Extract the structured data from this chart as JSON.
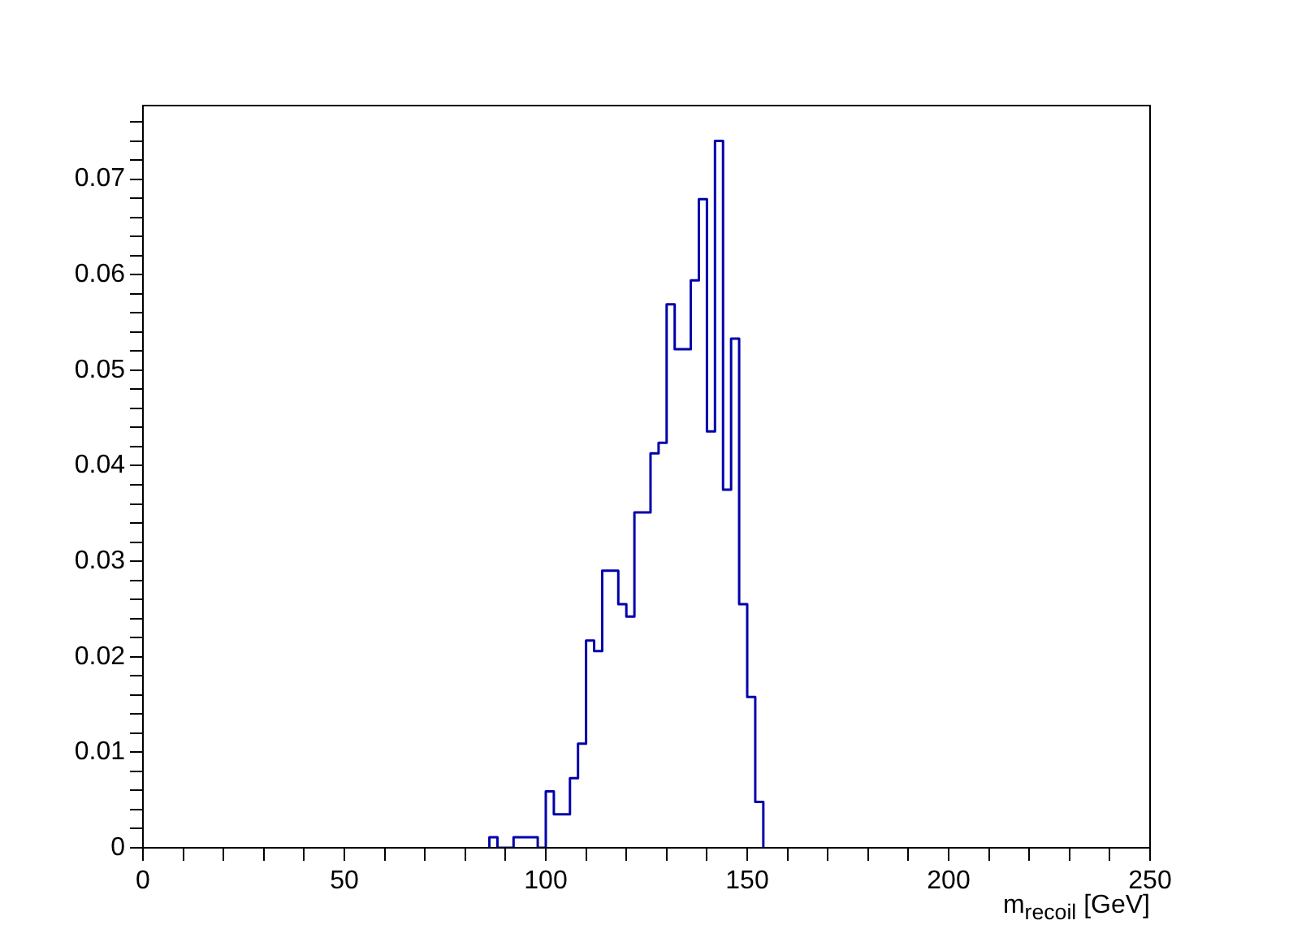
{
  "chart_data": {
    "type": "histogram",
    "xlabel": "m$_{recoil}$ [GeV]",
    "bins": [
      86,
      88,
      90,
      92,
      94,
      96,
      98,
      100,
      102,
      104,
      106,
      108,
      110,
      112,
      114,
      116,
      118,
      120,
      122,
      124,
      126,
      128,
      130,
      132,
      134,
      136,
      138,
      140,
      142,
      144,
      146,
      148,
      150,
      152,
      154
    ],
    "values": [
      0.0011,
      0,
      0,
      0.0011,
      0.0011,
      0.0011,
      0,
      0.0059,
      0.0035,
      0.0035,
      0.0073,
      0.0109,
      0.0217,
      0.0206,
      0.029,
      0.029,
      0.0255,
      0.0242,
      0.0351,
      0.0351,
      0.0413,
      0.0424,
      0.0569,
      0.0522,
      0.0522,
      0.0594,
      0.0679,
      0.0436,
      0.074,
      0.0375,
      0.0533,
      0.0255,
      0.0158,
      0.0048
    ],
    "color": "#0000aa",
    "xlim": [
      0,
      250
    ],
    "xticks": [
      0,
      {
        "value": 10,
        "label": null
      },
      {
        "value": 20,
        "label": null
      },
      {
        "value": 30,
        "label": null
      },
      {
        "value": 40,
        "label": null
      },
      50,
      {
        "value": 60,
        "label": null
      },
      {
        "value": 70,
        "label": null
      },
      {
        "value": 80,
        "label": null
      },
      {
        "value": 90,
        "label": null
      },
      100,
      {
        "value": 110,
        "label": null
      },
      {
        "value": 120,
        "label": null
      },
      {
        "value": 130,
        "label": null
      },
      {
        "value": 140,
        "label": null
      },
      150,
      {
        "value": 160,
        "label": null
      },
      {
        "value": 170,
        "label": null
      },
      {
        "value": 180,
        "label": null
      },
      {
        "value": 190,
        "label": null
      },
      200,
      {
        "value": 210,
        "label": null
      },
      {
        "value": 220,
        "label": null
      },
      {
        "value": 230,
        "label": null
      },
      {
        "value": 240,
        "label": null
      },
      250
    ],
    "ylim": [
      0,
      0.0777
    ],
    "yticks": [
      0,
      {
        "value": 0.002,
        "label": null
      },
      {
        "value": 0.004,
        "label": null
      },
      {
        "value": 0.006,
        "label": null
      },
      {
        "value": 0.008,
        "label": null
      },
      0.01,
      {
        "value": 0.012,
        "label": null
      },
      {
        "value": 0.014,
        "label": null
      },
      {
        "value": 0.016,
        "label": null
      },
      {
        "value": 0.018,
        "label": null
      },
      0.02,
      {
        "value": 0.022,
        "label": null
      },
      {
        "value": 0.024,
        "label": null
      },
      {
        "value": 0.026,
        "label": null
      },
      {
        "value": 0.028,
        "label": null
      },
      0.03,
      {
        "value": 0.032,
        "label": null
      },
      {
        "value": 0.034,
        "label": null
      },
      {
        "value": 0.036,
        "label": null
      },
      {
        "value": 0.038,
        "label": null
      },
      0.04,
      {
        "value": 0.042,
        "label": null
      },
      {
        "value": 0.044,
        "label": null
      },
      {
        "value": 0.046,
        "label": null
      },
      {
        "value": 0.048,
        "label": null
      },
      0.05,
      {
        "value": 0.052,
        "label": null
      },
      {
        "value": 0.054,
        "label": null
      },
      {
        "value": 0.056,
        "label": null
      },
      {
        "value": 0.058,
        "label": null
      },
      0.06,
      {
        "value": 0.062,
        "label": null
      },
      {
        "value": 0.064,
        "label": null
      },
      {
        "value": 0.066,
        "label": null
      },
      {
        "value": 0.068,
        "label": null
      },
      0.07,
      {
        "value": 0.072,
        "label": null
      },
      {
        "value": 0.074,
        "label": null
      },
      {
        "value": 0.076,
        "label": null
      }
    ],
    "grid": false,
    "legend": false
  }
}
